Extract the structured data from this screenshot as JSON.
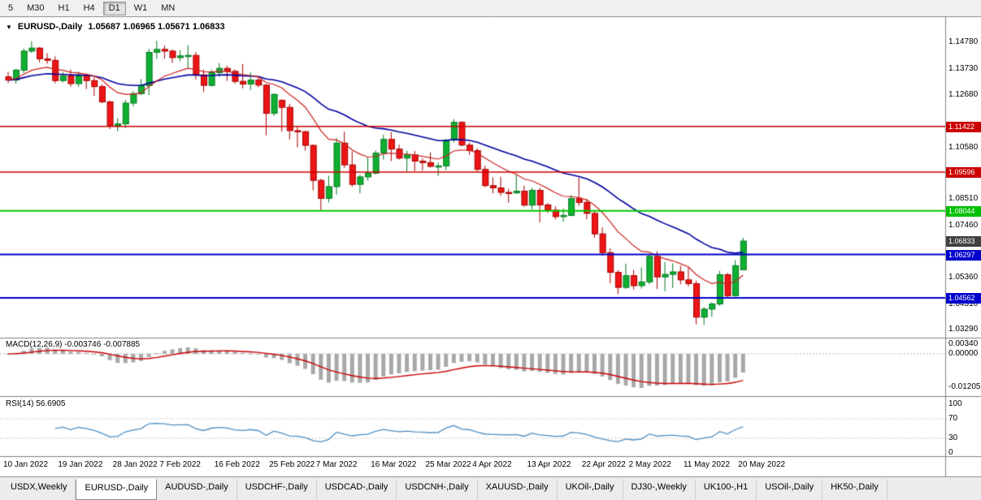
{
  "toolbar": {
    "timeframes": [
      {
        "label": "5",
        "active": false
      },
      {
        "label": "M30",
        "active": false
      },
      {
        "label": "H1",
        "active": false
      },
      {
        "label": "H4",
        "active": false
      },
      {
        "label": "D1",
        "active": true
      },
      {
        "label": "W1",
        "active": false
      },
      {
        "label": "MN",
        "active": false
      }
    ]
  },
  "chart": {
    "marker": "▼",
    "title": "EURUSD-,Daily",
    "ohlc": "1.05687 1.06965 1.05671 1.06833"
  },
  "indicators": {
    "macd": {
      "label": "MACD(12,26,9)",
      "values": "-0.003746 -0.007885",
      "scale": [
        {
          "label": "0.00340",
          "value": 0.0034
        },
        {
          "label": "0.00000",
          "value": 0
        },
        {
          "label": "-0.01205",
          "value": -0.01205
        }
      ]
    },
    "rsi": {
      "label": "RSI(14)",
      "value": "56.6905",
      "scale": [
        {
          "label": "100",
          "value": 100
        },
        {
          "label": "70",
          "value": 70
        },
        {
          "label": "30",
          "value": 30
        },
        {
          "label": "0",
          "value": 0
        }
      ]
    }
  },
  "price_scale": {
    "labels": [
      "1.14780",
      "1.13730",
      "1.12680",
      "1.10580",
      "1.08510",
      "1.07460",
      "1.05360",
      "1.04310",
      "1.03290"
    ],
    "badges": [
      {
        "value": "1.11422",
        "price": 1.11422,
        "color": "#CC0000"
      },
      {
        "value": "1.09596",
        "price": 1.09596,
        "color": "#CC0000"
      },
      {
        "value": "1.08044",
        "price": 1.08044,
        "color": "#00C000"
      },
      {
        "value": "1.06833",
        "price": 1.06833,
        "color": "#404040"
      },
      {
        "value": "1.06297",
        "price": 1.06297,
        "color": "#0000CC"
      },
      {
        "value": "1.04562",
        "price": 1.04562,
        "color": "#0000CC"
      }
    ]
  },
  "tabs": [
    {
      "label": "USDX,Weekly",
      "active": false
    },
    {
      "label": "EURUSD-,Daily",
      "active": true
    },
    {
      "label": "AUDUSD-,Daily",
      "active": false
    },
    {
      "label": "USDCHF-,Daily",
      "active": false
    },
    {
      "label": "USDCAD-,Daily",
      "active": false
    },
    {
      "label": "USDCNH-,Daily",
      "active": false
    },
    {
      "label": "XAUUSD-,Daily",
      "active": false
    },
    {
      "label": "UKOil-,Daily",
      "active": false
    },
    {
      "label": "DJ30-,Weekly",
      "active": false
    },
    {
      "label": "UK100-,H1",
      "active": false
    },
    {
      "label": "USOil-,Daily",
      "active": false
    },
    {
      "label": "HK50-,Daily",
      "active": false
    }
  ],
  "chart_data": {
    "type": "candlestick",
    "symbol": "EURUSD-",
    "timeframe": "Daily",
    "last_ohlc": {
      "open": 1.05687,
      "high": 1.06965,
      "low": 1.05671,
      "close": 1.06833
    },
    "y_axis_range": [
      1.031,
      1.155
    ],
    "colors": {
      "bull_fill": "#0FAF32",
      "bull_stroke": "#077A20",
      "bear_fill": "#ED1515",
      "bear_stroke": "#A80000",
      "ma_fast": "#CC2222",
      "ma_slow": "#0000A0",
      "macd_histogram": "#A8A8A8",
      "macd_signal": "#CC0000",
      "rsi_line": "#4D8FC4"
    },
    "horizontal_levels": [
      {
        "price": 1.11422,
        "color": "#CC0000",
        "width": 1.5
      },
      {
        "price": 1.09596,
        "color": "#CC0000",
        "width": 1.5
      },
      {
        "price": 1.08044,
        "color": "#00C800",
        "width": 2
      },
      {
        "price": 1.06297,
        "color": "#0000CC",
        "width": 2
      },
      {
        "price": 1.04562,
        "color": "#0000CC",
        "width": 2
      }
    ],
    "date_labels": [
      {
        "label": "10 Jan 2022",
        "index": 0
      },
      {
        "label": "19 Jan 2022",
        "index": 7
      },
      {
        "label": "28 Jan 2022",
        "index": 14
      },
      {
        "label": "7 Feb 2022",
        "index": 20
      },
      {
        "label": "16 Feb 2022",
        "index": 27
      },
      {
        "label": "25 Feb 2022",
        "index": 34
      },
      {
        "label": "7 Mar 2022",
        "index": 40
      },
      {
        "label": "16 Mar 2022",
        "index": 47
      },
      {
        "label": "25 Mar 2022",
        "index": 54
      },
      {
        "label": "4 Apr 2022",
        "index": 60
      },
      {
        "label": "13 Apr 2022",
        "index": 67
      },
      {
        "label": "22 Apr 2022",
        "index": 74
      },
      {
        "label": "2 May 2022",
        "index": 80
      },
      {
        "label": "11 May 2022",
        "index": 87
      },
      {
        "label": "20 May 2022",
        "index": 94
      }
    ],
    "candles": [
      [
        1.134,
        1.136,
        1.1315,
        1.1327
      ],
      [
        1.1327,
        1.1372,
        1.1313,
        1.1367
      ],
      [
        1.1367,
        1.1453,
        1.1355,
        1.1443
      ],
      [
        1.1443,
        1.1482,
        1.1435,
        1.1455
      ],
      [
        1.1455,
        1.1459,
        1.1398,
        1.1412
      ],
      [
        1.1412,
        1.1435,
        1.1392,
        1.1406
      ],
      [
        1.1406,
        1.1422,
        1.1314,
        1.1325
      ],
      [
        1.1325,
        1.1358,
        1.1318,
        1.1344
      ],
      [
        1.1344,
        1.1369,
        1.1301,
        1.1313
      ],
      [
        1.1313,
        1.136,
        1.13,
        1.1344
      ],
      [
        1.1344,
        1.1348,
        1.1291,
        1.1325
      ],
      [
        1.1325,
        1.1339,
        1.1264,
        1.1301
      ],
      [
        1.1301,
        1.131,
        1.1235,
        1.124
      ],
      [
        1.124,
        1.1245,
        1.1131,
        1.1145
      ],
      [
        1.1145,
        1.1175,
        1.1122,
        1.1152
      ],
      [
        1.1152,
        1.1248,
        1.1135,
        1.1235
      ],
      [
        1.1235,
        1.1283,
        1.1222,
        1.1273
      ],
      [
        1.1273,
        1.1331,
        1.1267,
        1.1305
      ],
      [
        1.1305,
        1.1452,
        1.1267,
        1.1438
      ],
      [
        1.1438,
        1.1484,
        1.1412,
        1.145
      ],
      [
        1.145,
        1.1465,
        1.1413,
        1.1443
      ],
      [
        1.1443,
        1.1449,
        1.1396,
        1.1417
      ],
      [
        1.1417,
        1.1446,
        1.1403,
        1.1424
      ],
      [
        1.1424,
        1.1467,
        1.1374,
        1.1426
      ],
      [
        1.1426,
        1.144,
        1.133,
        1.1348
      ],
      [
        1.1348,
        1.1369,
        1.128,
        1.1306
      ],
      [
        1.1306,
        1.137,
        1.1301,
        1.1357
      ],
      [
        1.1357,
        1.1395,
        1.134,
        1.1374
      ],
      [
        1.1374,
        1.1385,
        1.1324,
        1.1362
      ],
      [
        1.1362,
        1.137,
        1.1312,
        1.1322
      ],
      [
        1.1322,
        1.1391,
        1.1294,
        1.1311
      ],
      [
        1.1311,
        1.1359,
        1.1287,
        1.1327
      ],
      [
        1.1327,
        1.1343,
        1.1298,
        1.1307
      ],
      [
        1.1307,
        1.131,
        1.1106,
        1.1194
      ],
      [
        1.1194,
        1.1274,
        1.1184,
        1.127
      ],
      [
        1.1246,
        1.125,
        1.1121,
        1.1218
      ],
      [
        1.1218,
        1.1232,
        1.109,
        1.1125
      ],
      [
        1.1125,
        1.1143,
        1.1058,
        1.1121
      ],
      [
        1.1121,
        1.1123,
        1.1045,
        1.1066
      ],
      [
        1.1066,
        1.107,
        1.0886,
        1.0926
      ],
      [
        1.0926,
        1.0933,
        1.0806,
        1.0854
      ],
      [
        1.0854,
        1.0945,
        1.0838,
        1.0901
      ],
      [
        1.0901,
        1.1095,
        1.0869,
        1.1075
      ],
      [
        1.1075,
        1.1121,
        1.0976,
        1.0988
      ],
      [
        1.0988,
        1.1043,
        1.0901,
        1.091
      ],
      [
        1.091,
        1.0948,
        1.0874,
        1.094
      ],
      [
        1.094,
        1.102,
        1.0925,
        1.0955
      ],
      [
        1.0955,
        1.1046,
        1.095,
        1.1035
      ],
      [
        1.1035,
        1.1109,
        1.1009,
        1.109
      ],
      [
        1.109,
        1.1119,
        1.1003,
        1.1051
      ],
      [
        1.1051,
        1.1069,
        1.1009,
        1.1015
      ],
      [
        1.1015,
        1.1045,
        1.0961,
        1.1028
      ],
      [
        1.1028,
        1.1044,
        1.0963,
        1.1003
      ],
      [
        1.1003,
        1.1014,
        1.0965,
        1.0997
      ],
      [
        1.0997,
        1.1038,
        1.0978,
        1.0982
      ],
      [
        1.0982,
        1.0998,
        1.0944,
        1.0984
      ],
      [
        1.0984,
        1.1092,
        1.0966,
        1.1087
      ],
      [
        1.1087,
        1.1171,
        1.1078,
        1.1158
      ],
      [
        1.1158,
        1.1162,
        1.1062,
        1.1067
      ],
      [
        1.1067,
        1.1077,
        1.1028,
        1.1045
      ],
      [
        1.1045,
        1.1055,
        1.096,
        1.097
      ],
      [
        1.097,
        1.0985,
        1.0898,
        1.0905
      ],
      [
        1.0905,
        1.0938,
        1.0874,
        1.0896
      ],
      [
        1.0896,
        1.094,
        1.0864,
        1.0878
      ],
      [
        1.0878,
        1.0892,
        1.0837,
        1.0876
      ],
      [
        1.0876,
        1.095,
        1.0872,
        1.0883
      ],
      [
        1.0883,
        1.0905,
        1.0821,
        1.0827
      ],
      [
        1.0827,
        1.0896,
        1.0809,
        1.0886
      ],
      [
        1.0886,
        1.0896,
        1.0758,
        1.0828
      ],
      [
        1.0828,
        1.0835,
        1.0796,
        1.0807
      ],
      [
        1.0807,
        1.0822,
        1.077,
        1.0781
      ],
      [
        1.0781,
        1.0814,
        1.0761,
        1.0786
      ],
      [
        1.0786,
        1.0867,
        1.0783,
        1.0853
      ],
      [
        1.0853,
        1.0937,
        1.0824,
        1.0838
      ],
      [
        1.0838,
        1.0852,
        1.077,
        1.0794
      ],
      [
        1.0794,
        1.0804,
        1.0697,
        1.0712
      ],
      [
        1.0712,
        1.0738,
        1.0624,
        1.0637
      ],
      [
        1.0637,
        1.0655,
        1.0514,
        1.0558
      ],
      [
        1.0558,
        1.0567,
        1.0471,
        1.0498
      ],
      [
        1.0498,
        1.0593,
        1.0492,
        1.0545
      ],
      [
        1.0545,
        1.0568,
        1.049,
        1.0505
      ],
      [
        1.0505,
        1.0578,
        1.0493,
        1.052
      ],
      [
        1.052,
        1.0632,
        1.051,
        1.0622
      ],
      [
        1.0622,
        1.0642,
        1.0492,
        1.054
      ],
      [
        1.054,
        1.0599,
        1.0483,
        1.055
      ],
      [
        1.055,
        1.0594,
        1.0495,
        1.056
      ],
      [
        1.056,
        1.0585,
        1.051,
        1.0528
      ],
      [
        1.0528,
        1.0579,
        1.0502,
        1.0513
      ],
      [
        1.0513,
        1.0525,
        1.035,
        1.0379
      ],
      [
        1.0379,
        1.042,
        1.0348,
        1.0411
      ],
      [
        1.0411,
        1.0438,
        1.038,
        1.0432
      ],
      [
        1.0432,
        1.0564,
        1.0424,
        1.0549
      ],
      [
        1.0549,
        1.0556,
        1.0459,
        1.0465
      ],
      [
        1.0465,
        1.0607,
        1.0461,
        1.0585
      ],
      [
        1.05687,
        1.06965,
        1.05671,
        1.06833
      ]
    ]
  }
}
